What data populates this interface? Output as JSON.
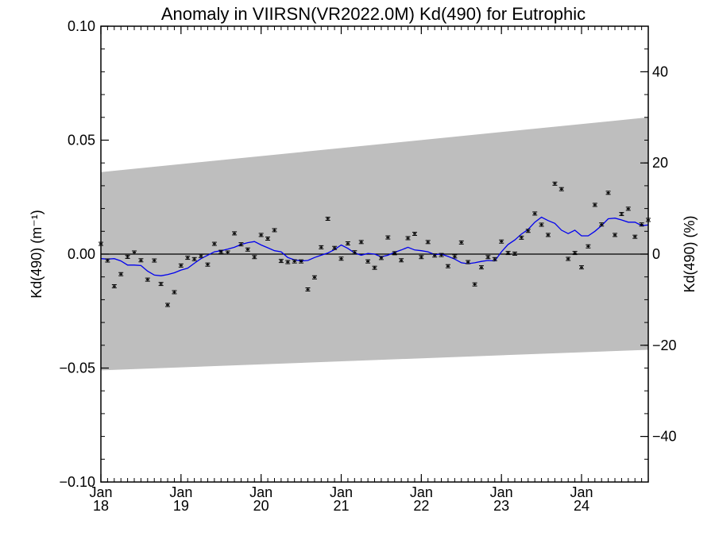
{
  "chart_data": {
    "type": "scatter",
    "title": "Anomaly in VIIRSN(VR2022.0M) Kd(490) for Eutrophic",
    "ylabel_left": "Kd(490) (m⁻¹)",
    "ylabel_right": "Kd(490) (%)",
    "xlim": [
      2018.0,
      2024.833
    ],
    "ylim_left": [
      -0.1,
      0.1
    ],
    "ylim_right": [
      -50,
      50
    ],
    "x_ticks": [
      {
        "x": 2018.0,
        "month": "Jan",
        "year": "18"
      },
      {
        "x": 2019.0,
        "month": "Jan",
        "year": "19"
      },
      {
        "x": 2020.0,
        "month": "Jan",
        "year": "20"
      },
      {
        "x": 2021.0,
        "month": "Jan",
        "year": "21"
      },
      {
        "x": 2022.0,
        "month": "Jan",
        "year": "22"
      },
      {
        "x": 2023.0,
        "month": "Jan",
        "year": "23"
      },
      {
        "x": 2024.0,
        "month": "Jan",
        "year": "24"
      }
    ],
    "y_ticks_left": [
      {
        "v": 0.1,
        "label": "0.10"
      },
      {
        "v": 0.05,
        "label": "0.05"
      },
      {
        "v": 0.0,
        "label": "0.00"
      },
      {
        "v": -0.05,
        "label": "−0.05"
      },
      {
        "v": -0.1,
        "label": "−0.10"
      }
    ],
    "y_ticks_right": [
      {
        "v": 40,
        "label": "40"
      },
      {
        "v": 20,
        "label": "20"
      },
      {
        "v": 0,
        "label": "0"
      },
      {
        "v": -20,
        "label": "−20"
      },
      {
        "v": -40,
        "label": "−40"
      }
    ],
    "band": {
      "color": "#bebebe",
      "upper": [
        [
          2018.0,
          0.036
        ],
        [
          2024.833,
          0.06
        ]
      ],
      "lower": [
        [
          2018.0,
          -0.051
        ],
        [
          2024.833,
          -0.042
        ]
      ]
    },
    "zero_line": 0,
    "colors": {
      "points": "#000000",
      "smooth_line": "#0000ee",
      "band": "#bebebe"
    },
    "monthly_points": {
      "x": [
        2018.0,
        2018.083,
        2018.167,
        2018.25,
        2018.333,
        2018.417,
        2018.5,
        2018.583,
        2018.667,
        2018.75,
        2018.833,
        2018.917,
        2019.0,
        2019.083,
        2019.167,
        2019.25,
        2019.333,
        2019.417,
        2019.5,
        2019.583,
        2019.667,
        2019.75,
        2019.833,
        2019.917,
        2020.0,
        2020.083,
        2020.167,
        2020.25,
        2020.333,
        2020.417,
        2020.5,
        2020.583,
        2020.667,
        2020.75,
        2020.833,
        2020.917,
        2021.0,
        2021.083,
        2021.167,
        2021.25,
        2021.333,
        2021.417,
        2021.5,
        2021.583,
        2021.667,
        2021.75,
        2021.833,
        2021.917,
        2022.0,
        2022.083,
        2022.167,
        2022.25,
        2022.333,
        2022.417,
        2022.5,
        2022.583,
        2022.667,
        2022.75,
        2022.833,
        2022.917,
        2023.0,
        2023.083,
        2023.167,
        2023.25,
        2023.333,
        2023.417,
        2023.5,
        2023.583,
        2023.667,
        2023.75,
        2023.833,
        2023.917,
        2024.0,
        2024.083,
        2024.167,
        2024.25,
        2024.333,
        2024.417,
        2024.5,
        2024.583,
        2024.667,
        2024.75,
        2024.833
      ],
      "y": [
        0.0045,
        -0.0028,
        -0.0141,
        -0.0088,
        -0.0012,
        0.0007,
        -0.0027,
        -0.0112,
        -0.0028,
        -0.0131,
        -0.0223,
        -0.0167,
        -0.005,
        -0.0016,
        -0.0022,
        -0.0008,
        -0.0046,
        0.0045,
        0.001,
        0.0007,
        0.0091,
        0.0043,
        0.002,
        -0.0013,
        0.0084,
        0.0068,
        0.0105,
        -0.003,
        -0.0035,
        -0.0032,
        -0.0032,
        -0.0155,
        -0.0102,
        0.003,
        0.0155,
        0.0027,
        -0.002,
        0.0047,
        0.0008,
        0.0053,
        -0.0032,
        -0.006,
        -0.0017,
        0.0073,
        0.0004,
        -0.0027,
        0.007,
        0.0089,
        -0.0013,
        0.0053,
        -0.0006,
        -0.0004,
        -0.0053,
        -0.001,
        0.0051,
        -0.0035,
        -0.0133,
        -0.0058,
        -0.0013,
        -0.0022,
        0.0055,
        0.0005,
        0.0002,
        0.0072,
        0.0102,
        0.0178,
        0.0129,
        0.0084,
        0.0309,
        0.0285,
        -0.0021,
        0.0005,
        -0.0058,
        0.0034,
        0.0216,
        0.013,
        0.0269,
        0.0084,
        0.0176,
        0.0199,
        0.0076,
        0.013,
        0.015
      ]
    },
    "smoothed_line": {
      "x": [
        2018.0,
        2018.083,
        2018.167,
        2018.25,
        2018.333,
        2018.417,
        2018.5,
        2018.583,
        2018.667,
        2018.75,
        2018.833,
        2018.917,
        2019.0,
        2019.083,
        2019.167,
        2019.25,
        2019.333,
        2019.417,
        2019.5,
        2019.583,
        2019.667,
        2019.75,
        2019.833,
        2019.917,
        2020.0,
        2020.083,
        2020.167,
        2020.25,
        2020.333,
        2020.417,
        2020.5,
        2020.583,
        2020.667,
        2020.75,
        2020.833,
        2020.917,
        2021.0,
        2021.083,
        2021.167,
        2021.25,
        2021.333,
        2021.417,
        2021.5,
        2021.583,
        2021.667,
        2021.75,
        2021.833,
        2021.917,
        2022.0,
        2022.083,
        2022.167,
        2022.25,
        2022.333,
        2022.417,
        2022.5,
        2022.583,
        2022.667,
        2022.75,
        2022.833,
        2022.917,
        2023.0,
        2023.083,
        2023.167,
        2023.25,
        2023.333,
        2023.417,
        2023.5,
        2023.583,
        2023.667,
        2023.75,
        2023.833,
        2023.917,
        2024.0,
        2024.083,
        2024.167,
        2024.25,
        2024.333,
        2024.417,
        2024.5,
        2024.583,
        2024.667,
        2024.75,
        2024.833
      ],
      "y": [
        -0.002,
        -0.0022,
        -0.002,
        -0.003,
        -0.0048,
        -0.0048,
        -0.005,
        -0.0075,
        -0.0092,
        -0.0095,
        -0.009,
        -0.0082,
        -0.007,
        -0.0062,
        -0.004,
        -0.002,
        -0.0005,
        0.001,
        0.0015,
        0.0022,
        0.003,
        0.0042,
        0.005,
        0.0055,
        0.004,
        0.0028,
        0.0015,
        0.001,
        -0.0015,
        -0.0025,
        -0.003,
        -0.0028,
        -0.0015,
        -0.0005,
        0.0005,
        0.002,
        0.004,
        0.0025,
        0.0005,
        -0.0005,
        0.0003,
        0.0,
        -0.0012,
        -0.0005,
        0.0008,
        0.0018,
        0.003,
        0.0018,
        0.0015,
        0.001,
        -0.0002,
        0.0,
        -0.001,
        -0.0022,
        -0.0038,
        -0.0042,
        -0.0038,
        -0.0032,
        -0.0028,
        -0.003,
        0.001,
        0.0042,
        0.0062,
        0.0088,
        0.0108,
        0.014,
        0.0162,
        0.0147,
        0.0135,
        0.0105,
        0.009,
        0.0105,
        0.008,
        0.008,
        0.01,
        0.0125,
        0.0155,
        0.0158,
        0.015,
        0.014,
        0.014,
        0.0125,
        0.0128
      ]
    }
  }
}
